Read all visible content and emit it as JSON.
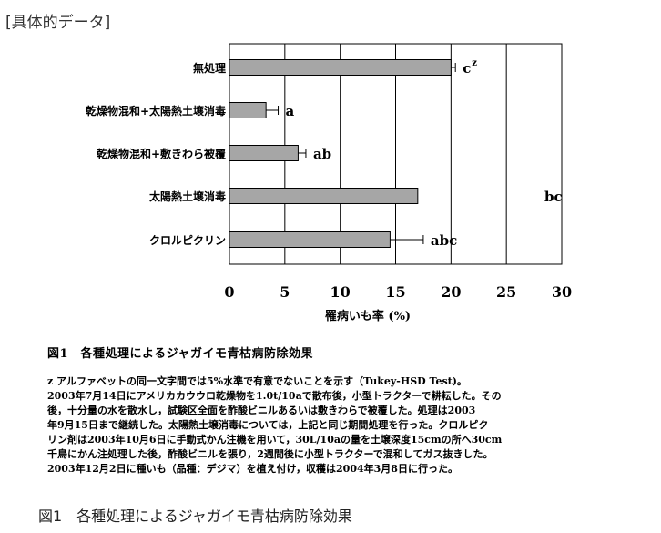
{
  "header": "[具体的データ]",
  "chart_data": {
    "type": "bar",
    "orientation": "horizontal",
    "categories": [
      "無処理",
      "乾燥物混和+太陽熱土壌消毒",
      "乾燥物混和+敷きわら被覆",
      "太陽熱土壌消毒",
      "クロルピクリン"
    ],
    "values": [
      20,
      3.3,
      6.2,
      17,
      14.5
    ],
    "errors": [
      0.4,
      1.1,
      0.7,
      null,
      3.0
    ],
    "significance": [
      "c",
      "a",
      "ab",
      "bc",
      "abc"
    ],
    "significance_superscript": [
      "z",
      "",
      "",
      "",
      ""
    ],
    "xlim": [
      0,
      30
    ],
    "xticks": [
      0,
      5,
      10,
      15,
      20,
      25,
      30
    ],
    "xlabel": "罹病いも率 (%)",
    "ylabel": "",
    "bar_color": "#a6a6a6"
  },
  "figure_title": "図1　各種処理によるジャガイモ青枯病防除効果",
  "notes": [
    "z アルファベットの同一文字間では5%水準で有意でないことを示す（Tukey-HSD Test)。",
    "2003年7月14日にアメリカカウウロ乾燥物を1.0t/10aで散布後，小型トラクターで耕耘した。その",
    "後，十分量の水を散水し，試験区全面を酢酸ビニルあるいは敷きわらで被覆した。処理は2003",
    "年9月15日まで継続した。太陽熱土壌消毒については，上記と同じ期間処理を行った。クロルピク",
    "リン剤は2003年10月6日に手動式かん注機を用いて，30L/10aの量を土壌深度15cmの所へ30cm",
    "千鳥にかん注処理した後，酢酸ビニルを張り，2週間後に小型トラクターで混和してガス抜きした。",
    "2003年12月2日に種いも（品種：デジマ）を植え付け，収穫は2004年3月8日に行った。"
  ],
  "caption": "図1　各種処理によるジャガイモ青枯病防除効果"
}
